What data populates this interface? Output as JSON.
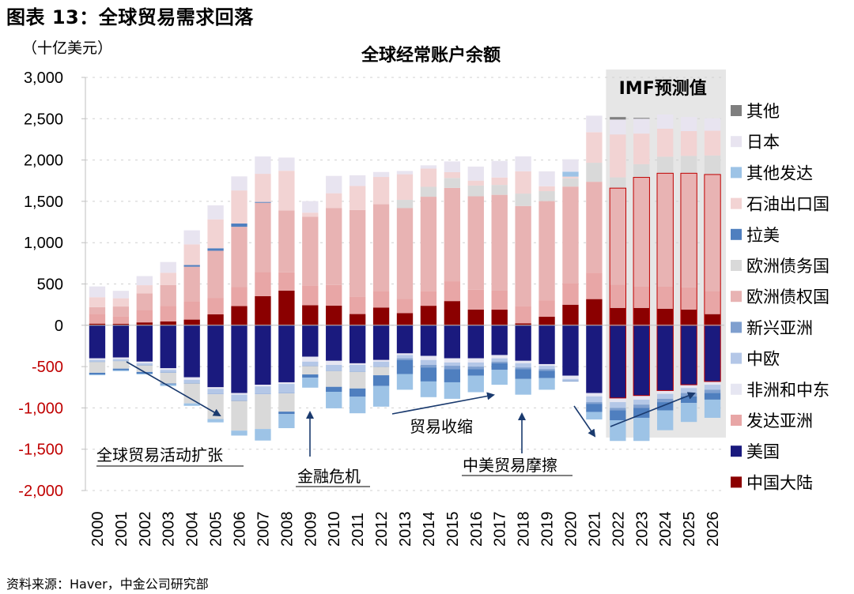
{
  "figure_title": "图表 13：全球贸易需求回落",
  "unit_label": "（十亿美元）",
  "source_note": "资料来源：Haver，中金公司研究部",
  "chart_data": {
    "type": "bar",
    "stacked": true,
    "title": "全球经常账户余额",
    "ylabel": "（十亿美元）",
    "ylim": [
      -2000,
      3000
    ],
    "yticks": [
      3000,
      2500,
      2000,
      1500,
      1000,
      500,
      0,
      -500,
      -1000,
      -1500,
      -2000
    ],
    "ytick_labels": [
      "3,000",
      "2,500",
      "2,000",
      "1,500",
      "1,000",
      "500",
      "0",
      "-500",
      "-1,000",
      "-1,500",
      "-2,000"
    ],
    "categories": [
      "2000",
      "2001",
      "2002",
      "2003",
      "2004",
      "2005",
      "2006",
      "2007",
      "2008",
      "2009",
      "2010",
      "2011",
      "2012",
      "2013",
      "2014",
      "2015",
      "2016",
      "2017",
      "2018",
      "2019",
      "2020",
      "2021",
      "2022",
      "2023",
      "2024",
      "2025",
      "2026"
    ],
    "legend_position": "right",
    "grid": true,
    "series": [
      {
        "name": "中国大陆",
        "color": "#8b0000",
        "values": [
          20,
          17,
          35,
          46,
          69,
          132,
          232,
          353,
          420,
          243,
          238,
          136,
          215,
          148,
          236,
          293,
          191,
          189,
          24,
          103,
          249,
          317,
          210,
          210,
          200,
          190,
          135
        ]
      },
      {
        "name": "美国",
        "color": "#1a1a7e",
        "values": [
          -400,
          -390,
          -440,
          -520,
          -630,
          -750,
          -820,
          -720,
          -690,
          -380,
          -430,
          -460,
          -420,
          -340,
          -370,
          -400,
          -400,
          -360,
          -430,
          -470,
          -610,
          -820,
          -880,
          -850,
          -790,
          -720,
          -680
        ]
      },
      {
        "name": "发达亚洲",
        "color": "#e8a6a6",
        "values": [
          120,
          90,
          150,
          190,
          220,
          200,
          230,
          290,
          220,
          240,
          250,
          210,
          200,
          170,
          180,
          240,
          240,
          230,
          210,
          200,
          260,
          320,
          280,
          260,
          270,
          270,
          280
        ]
      },
      {
        "name": "非洲和中东",
        "color": "#e6e6f2",
        "values": [
          -20,
          -20,
          -20,
          -20,
          -30,
          -20,
          -20,
          -20,
          -20,
          -60,
          -50,
          -20,
          -20,
          -20,
          -50,
          -50,
          -50,
          -40,
          -30,
          -20,
          -40,
          -40,
          -50,
          -50,
          -40,
          -40,
          -40
        ]
      },
      {
        "name": "中欧",
        "color": "#b4c7e7",
        "values": [
          -20,
          -20,
          -20,
          -30,
          -40,
          -60,
          -70,
          -90,
          -110,
          -50,
          -70,
          -80,
          -60,
          -40,
          -60,
          -40,
          -50,
          -40,
          -50,
          -40,
          -20,
          -70,
          -70,
          -60,
          -60,
          -60,
          -60
        ]
      },
      {
        "name": "新兴亚洲",
        "color": "#7f9fcf",
        "values": [
          -5,
          -5,
          -5,
          -5,
          -5,
          -5,
          -5,
          -5,
          -5,
          -5,
          -5,
          -5,
          -5,
          -20,
          -30,
          -40,
          -30,
          -20,
          -20,
          -20,
          -10,
          -20,
          -30,
          -40,
          -40,
          -40,
          -40
        ]
      },
      {
        "name": "欧洲债权国",
        "color": "#e8b3b3",
        "values": [
          80,
          120,
          200,
          250,
          420,
          570,
          730,
          840,
          750,
          830,
          930,
          1050,
          1050,
          1100,
          1140,
          1130,
          1130,
          1160,
          1210,
          1200,
          1170,
          1100,
          1170,
          1320,
          1370,
          1380,
          1410
        ]
      },
      {
        "name": "欧洲债务国",
        "color": "#d9d9d9",
        "values": [
          -130,
          -90,
          -80,
          -130,
          -240,
          -300,
          -360,
          -420,
          -220,
          -100,
          -190,
          -200,
          -100,
          100,
          120,
          120,
          130,
          120,
          150,
          120,
          100,
          230,
          130,
          160,
          200,
          210,
          230
        ]
      },
      {
        "name": "拉美",
        "color": "#4f7fbf",
        "values": [
          -20,
          -20,
          -20,
          -10,
          20,
          30,
          40,
          10,
          -30,
          -40,
          -60,
          -100,
          -130,
          -170,
          -170,
          -160,
          -80,
          -80,
          -120,
          -90,
          0,
          -100,
          -120,
          -120,
          -100,
          -80,
          -80
        ]
      },
      {
        "name": "石油出口国",
        "color": "#f2d3d3",
        "values": [
          120,
          100,
          100,
          150,
          250,
          350,
          400,
          340,
          480,
          50,
          180,
          290,
          330,
          310,
          220,
          70,
          60,
          90,
          270,
          60,
          20,
          370,
          520,
          370,
          340,
          300,
          300
        ]
      },
      {
        "name": "其他发达",
        "color": "#9dc3e6",
        "values": [
          -10,
          -10,
          -10,
          -20,
          -30,
          -40,
          -60,
          -140,
          -170,
          -120,
          -200,
          -200,
          -250,
          -190,
          -190,
          -200,
          -200,
          -180,
          -190,
          -140,
          60,
          -90,
          -250,
          -280,
          -240,
          -230,
          -220
        ]
      },
      {
        "name": "日本",
        "color": "#e8e4f0",
        "values": [
          130,
          90,
          110,
          130,
          170,
          170,
          170,
          210,
          160,
          140,
          210,
          130,
          60,
          40,
          40,
          130,
          170,
          200,
          180,
          180,
          150,
          200,
          180,
          180,
          170,
          170,
          150
        ]
      },
      {
        "name": "其他",
        "color": "#7f7f7f",
        "values": [
          0,
          0,
          0,
          0,
          0,
          0,
          0,
          0,
          0,
          0,
          0,
          0,
          0,
          0,
          0,
          0,
          0,
          0,
          0,
          0,
          0,
          0,
          30,
          10,
          0,
          0,
          0
        ]
      }
    ],
    "legend_order": [
      "其他",
      "日本",
      "其他发达",
      "石油出口国",
      "拉美",
      "欧洲债务国",
      "欧洲债权国",
      "新兴亚洲",
      "中欧",
      "非洲和中东",
      "发达亚洲",
      "美国",
      "中国大陆"
    ],
    "forecast": {
      "label": "IMF预测值",
      "from": "2022",
      "to": "2026",
      "shade_color": "#e6e6e6"
    },
    "annotations": [
      {
        "text": "全球贸易活动扩张",
        "underline": true
      },
      {
        "text": "金融危机",
        "underline": true
      },
      {
        "text": "贸易收缩",
        "underline": false
      },
      {
        "text": "中美贸易摩擦",
        "underline": true
      }
    ]
  }
}
